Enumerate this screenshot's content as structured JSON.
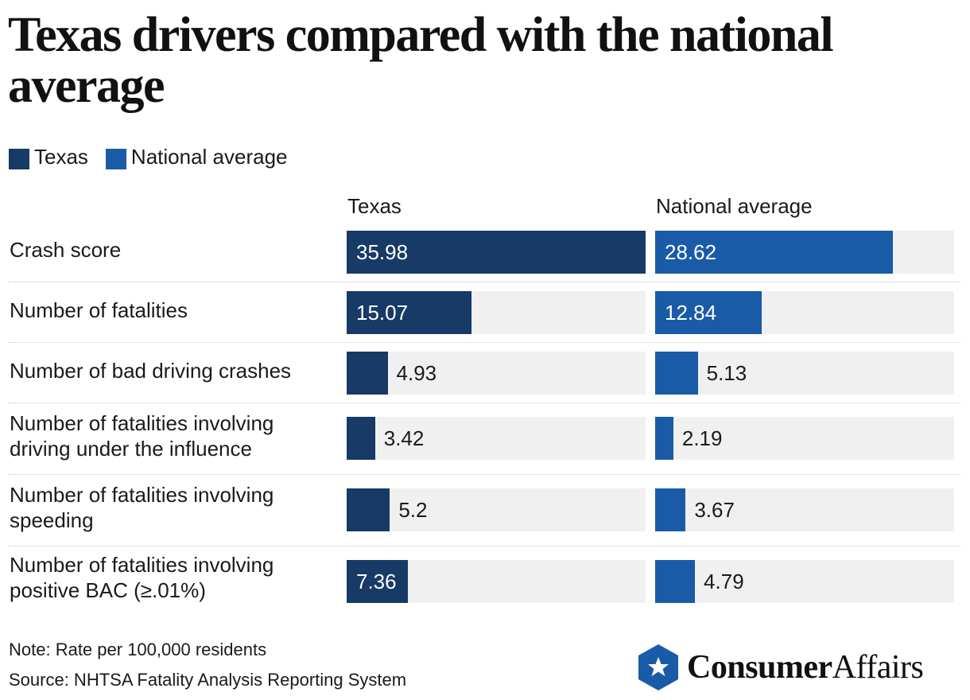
{
  "title": "Texas drivers compared with the national average",
  "legend": [
    {
      "label": "Texas",
      "color": "#173a66"
    },
    {
      "label": "National average",
      "color": "#1a5ba8"
    }
  ],
  "chart_data": {
    "type": "bar",
    "title": "Texas drivers compared with the national average",
    "categories": [
      "Crash score",
      "Number of fatalities",
      "Number of bad driving crashes",
      "Number of fatalities involving driving under the influence",
      "Number of fatalities involving speeding",
      "Number of fatalities involving positive BAC (≥.01%)"
    ],
    "series": [
      {
        "name": "Texas",
        "color": "#173a66",
        "values": [
          35.98,
          15.07,
          4.93,
          3.42,
          5.2,
          7.36
        ],
        "labels": [
          "35.98",
          "15.07",
          "4.93",
          "3.42",
          "5.2",
          "7.36"
        ]
      },
      {
        "name": "National average",
        "color": "#1a5ba8",
        "values": [
          28.62,
          12.84,
          5.13,
          2.19,
          3.67,
          4.79
        ],
        "labels": [
          "28.62",
          "12.84",
          "5.13",
          "2.19",
          "3.67",
          "4.79"
        ]
      }
    ],
    "xlim": [
      0,
      35.98
    ],
    "legend_position": "top-left",
    "grid": false
  },
  "columns": {
    "texas": "Texas",
    "national": "National average"
  },
  "footer": {
    "note": "Note: Rate per 100,000 residents",
    "source": "Source: NHTSA Fatality Analysis Reporting System"
  },
  "logo": {
    "bold": "Consumer",
    "regular": "Affairs",
    "icon": "star-shield-icon",
    "color": "#1a5ba8"
  }
}
